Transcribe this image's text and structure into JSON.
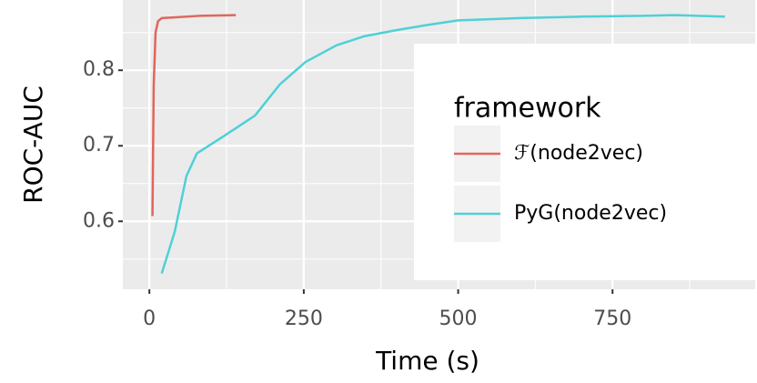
{
  "chart_data": {
    "type": "line",
    "x_label": "Time (s)",
    "y_label": "ROC-AUC",
    "xlim": [
      -43,
      981
    ],
    "ylim": [
      0.51,
      0.893
    ],
    "xticks": [
      0,
      250,
      500,
      750
    ],
    "yticks": [
      0.6,
      0.7,
      0.8
    ],
    "grid": true,
    "legend": "inside-right",
    "legend_title": "framework",
    "series": [
      {
        "name": "ℱ(node2vec)",
        "color": "#E0665D",
        "x": [
          5,
          7,
          10,
          14,
          20,
          40,
          80,
          140
        ],
        "values": [
          0.607,
          0.78,
          0.85,
          0.865,
          0.869,
          0.87,
          0.872,
          0.873
        ]
      },
      {
        "name": "PyG(node2vec)",
        "color": "#4FD0D6",
        "x": [
          20,
          41,
          60,
          77,
          119,
          171,
          211,
          253,
          303,
          348,
          399,
          451,
          500,
          600,
          700,
          800,
          850,
          932
        ],
        "values": [
          0.531,
          0.586,
          0.66,
          0.69,
          0.712,
          0.74,
          0.781,
          0.811,
          0.833,
          0.845,
          0.853,
          0.86,
          0.866,
          0.869,
          0.871,
          0.872,
          0.873,
          0.871
        ]
      }
    ]
  }
}
